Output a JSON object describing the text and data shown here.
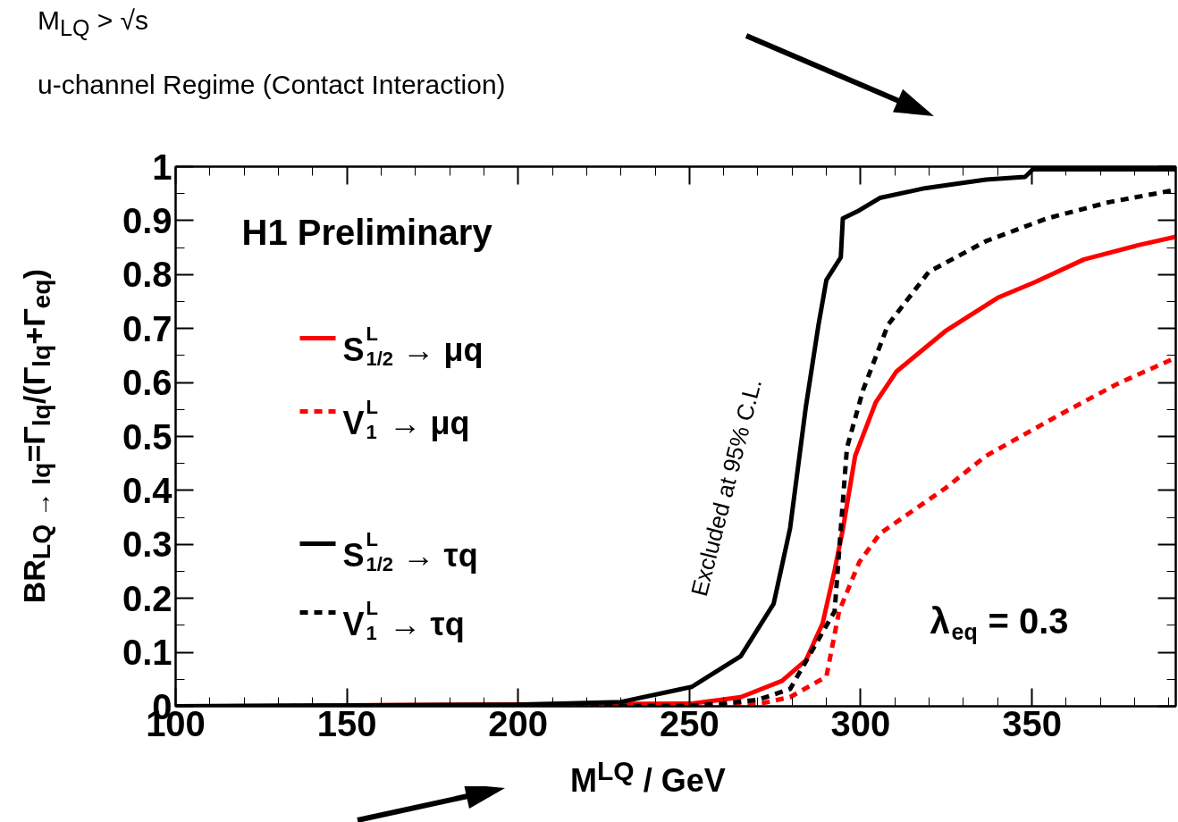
{
  "chart_data": {
    "type": "line",
    "xlabel": "M$^{LQ}$ / GeV",
    "ylabel": "BR$_{LQ → lq}$=Γ$_{lq}$/(Γ$_{lq}$+Γ$_{eq}$)",
    "xlim": [
      100,
      392
    ],
    "ylim": [
      0,
      1
    ],
    "xticks": [
      100,
      150,
      200,
      250,
      300,
      350
    ],
    "yticks": [
      0,
      0.1,
      0.2,
      0.3,
      0.4,
      0.5,
      0.6,
      0.7,
      0.8,
      0.9,
      1
    ],
    "grid": false,
    "legend": "left",
    "marker": "none",
    "series": [
      {
        "name": "S$^{L}$$_{1/2}$ → μq",
        "color": "#ff0000",
        "line_style": "solid",
        "x": [
          100,
          250.7,
          265,
          277,
          284,
          288.9,
          292.4,
          294.8,
          298.4,
          304.4,
          310.4,
          324.7,
          340,
          350.9,
          365.2,
          380.8,
          392
        ],
        "values": [
          0,
          0.005,
          0.017,
          0.047,
          0.085,
          0.154,
          0.252,
          0.328,
          0.464,
          0.563,
          0.62,
          0.695,
          0.757,
          0.786,
          0.828,
          0.854,
          0.87
        ]
      },
      {
        "name": "V$^{L}$$_{1}$ → μq",
        "color": "#ff0000",
        "line_style": "dotted",
        "x": [
          100,
          250,
          270,
          279.4,
          290,
          293.7,
          299.6,
          305.6,
          324.7,
          336.6,
          358,
          374.8,
          392
        ],
        "values": [
          0,
          0,
          0.004,
          0.017,
          0.055,
          0.176,
          0.267,
          0.32,
          0.404,
          0.464,
          0.54,
          0.597,
          0.646
        ]
      },
      {
        "name": "S$^{L}$$_{1/2}$ → τq",
        "color": "#000000",
        "line_style": "solid",
        "x": [
          100,
          200,
          230,
          250.7,
          265,
          274.6,
          279.4,
          284,
          287.7,
          290,
          294.2,
          294.8,
          299.6,
          305.6,
          318.7,
          336.6,
          348,
          350.3,
          392
        ],
        "values": [
          0,
          0.003,
          0.008,
          0.036,
          0.093,
          0.19,
          0.33,
          0.555,
          0.707,
          0.79,
          0.832,
          0.904,
          0.919,
          0.942,
          0.96,
          0.976,
          0.981,
          0.995,
          0.995
        ]
      },
      {
        "name": "V$^{L}$$_{1}$ → τq",
        "color": "#000000",
        "line_style": "dotted",
        "x": [
          100,
          250,
          260,
          270,
          279.4,
          292.4,
          294.2,
          296,
          300.7,
          308,
          319.9,
          336.6,
          354.4,
          372.4,
          392
        ],
        "values": [
          0,
          0.001,
          0.005,
          0.012,
          0.032,
          0.176,
          0.328,
          0.479,
          0.586,
          0.707,
          0.805,
          0.862,
          0.904,
          0.934,
          0.957
        ]
      }
    ],
    "annotations": [
      "M$_{LQ}$ > √s",
      "u-channel Regime (Contact Interaction)",
      "H1 Preliminary",
      "λ$_{eq}$ = 0.3",
      "Excluded at 95% C.L."
    ]
  }
}
